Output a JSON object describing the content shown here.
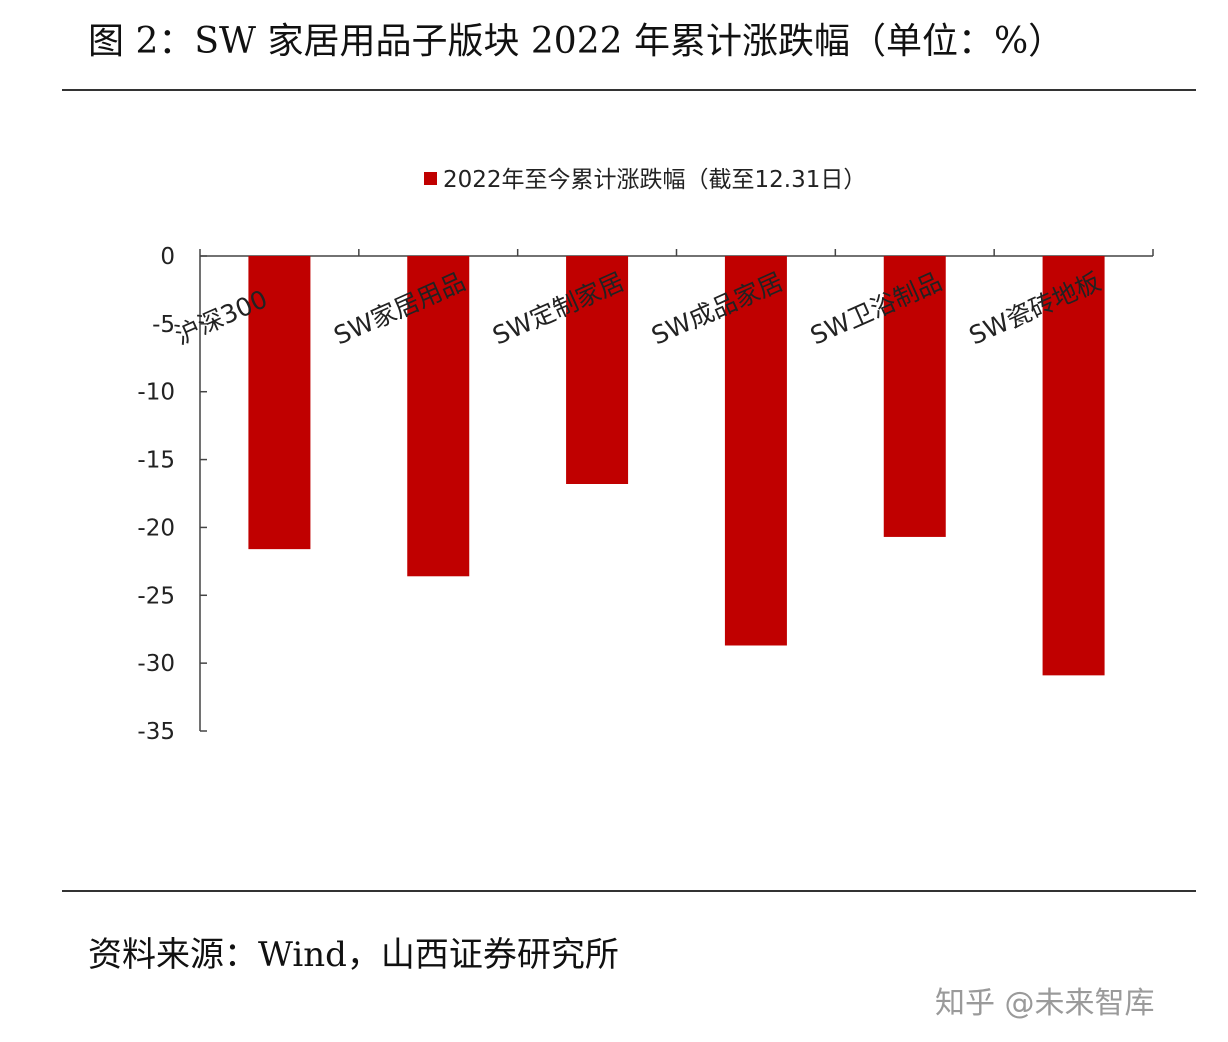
{
  "header": {
    "title": "图 2：SW 家居用品子版块 2022 年累计涨跌幅（单位：%）"
  },
  "footer": {
    "source": "资料来源：Wind，山西证券研究所",
    "watermark": "知乎 @未来智库"
  },
  "colors": {
    "bar": "#c00000",
    "axis": "#444444"
  },
  "chart_data": {
    "type": "bar",
    "title": "",
    "xlabel": "",
    "ylabel": "",
    "categories": [
      "沪深300",
      "SW家居用品",
      "SW定制家居",
      "SW成品家居",
      "SW卫浴制品",
      "SW瓷砖地板"
    ],
    "series": [
      {
        "name": "2022年至今累计涨跌幅（截至12.31日）",
        "values": [
          -21.6,
          -23.6,
          -16.8,
          -28.7,
          -20.7,
          -30.9
        ]
      }
    ],
    "ylim": [
      -35,
      0
    ],
    "yticks": [
      0,
      -5,
      -10,
      -15,
      -20,
      -25,
      -30,
      -35
    ],
    "grid": false,
    "legend": "top-center"
  }
}
